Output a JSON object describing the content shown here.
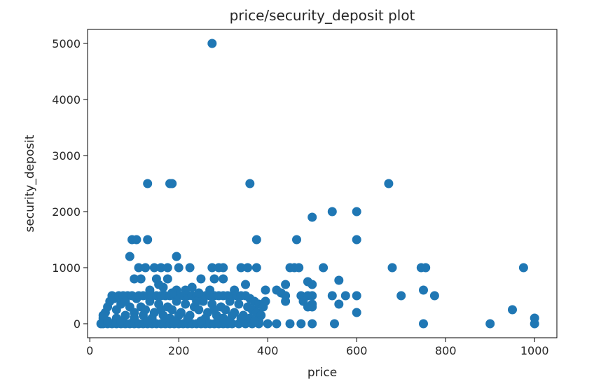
{
  "chart_data": {
    "type": "scatter",
    "title": "price/security_deposit plot",
    "xlabel": "price",
    "ylabel": "security_deposit",
    "xlim": [
      -5,
      1050
    ],
    "ylim": [
      -250,
      5250
    ],
    "xticks": [
      0,
      200,
      400,
      600,
      800,
      1000
    ],
    "yticks": [
      0,
      1000,
      2000,
      3000,
      4000,
      5000
    ],
    "grid": false,
    "legend": "none",
    "marker_color": "#1f77b4",
    "series": [
      {
        "points": [
          [
            275,
            5000
          ],
          [
            130,
            2500
          ],
          [
            180,
            2500
          ],
          [
            185,
            2500
          ],
          [
            360,
            2500
          ],
          [
            672,
            2500
          ],
          [
            545,
            2000
          ],
          [
            600,
            2000
          ],
          [
            500,
            1900
          ],
          [
            95,
            1500
          ],
          [
            105,
            1500
          ],
          [
            130,
            1500
          ],
          [
            375,
            1500
          ],
          [
            465,
            1500
          ],
          [
            600,
            1500
          ],
          [
            90,
            1200
          ],
          [
            195,
            1200
          ],
          [
            110,
            1000
          ],
          [
            125,
            1000
          ],
          [
            145,
            1000
          ],
          [
            160,
            1000
          ],
          [
            175,
            1000
          ],
          [
            200,
            1000
          ],
          [
            225,
            1000
          ],
          [
            275,
            1000
          ],
          [
            290,
            1000
          ],
          [
            300,
            1000
          ],
          [
            340,
            1000
          ],
          [
            355,
            1000
          ],
          [
            375,
            1000
          ],
          [
            450,
            1000
          ],
          [
            460,
            1000
          ],
          [
            470,
            1000
          ],
          [
            525,
            1000
          ],
          [
            680,
            1000
          ],
          [
            745,
            1000
          ],
          [
            755,
            1000
          ],
          [
            975,
            1000
          ],
          [
            100,
            800
          ],
          [
            115,
            800
          ],
          [
            150,
            800
          ],
          [
            175,
            800
          ],
          [
            250,
            800
          ],
          [
            280,
            800
          ],
          [
            300,
            800
          ],
          [
            560,
            775
          ],
          [
            490,
            750
          ],
          [
            500,
            700
          ],
          [
            440,
            700
          ],
          [
            750,
            600
          ],
          [
            395,
            600
          ],
          [
            420,
            600
          ],
          [
            430,
            550
          ],
          [
            440,
            500
          ],
          [
            475,
            500
          ],
          [
            490,
            500
          ],
          [
            500,
            500
          ],
          [
            545,
            500
          ],
          [
            575,
            500
          ],
          [
            600,
            500
          ],
          [
            700,
            500
          ],
          [
            775,
            500
          ],
          [
            395,
            400
          ],
          [
            440,
            400
          ],
          [
            480,
            400
          ],
          [
            500,
            350
          ],
          [
            490,
            300
          ],
          [
            500,
            300
          ],
          [
            560,
            350
          ],
          [
            600,
            200
          ],
          [
            950,
            250
          ],
          [
            1000,
            100
          ],
          [
            25,
            0
          ],
          [
            30,
            0
          ],
          [
            40,
            0
          ],
          [
            50,
            0
          ],
          [
            60,
            0
          ],
          [
            70,
            0
          ],
          [
            80,
            0
          ],
          [
            90,
            0
          ],
          [
            100,
            0
          ],
          [
            110,
            0
          ],
          [
            120,
            0
          ],
          [
            130,
            0
          ],
          [
            140,
            0
          ],
          [
            150,
            0
          ],
          [
            160,
            0
          ],
          [
            170,
            0
          ],
          [
            180,
            0
          ],
          [
            190,
            0
          ],
          [
            200,
            0
          ],
          [
            210,
            0
          ],
          [
            220,
            0
          ],
          [
            230,
            0
          ],
          [
            240,
            0
          ],
          [
            250,
            0
          ],
          [
            260,
            0
          ],
          [
            270,
            0
          ],
          [
            280,
            0
          ],
          [
            290,
            0
          ],
          [
            300,
            0
          ],
          [
            310,
            0
          ],
          [
            320,
            0
          ],
          [
            335,
            0
          ],
          [
            350,
            0
          ],
          [
            365,
            0
          ],
          [
            380,
            0
          ],
          [
            400,
            0
          ],
          [
            420,
            0
          ],
          [
            450,
            0
          ],
          [
            475,
            0
          ],
          [
            500,
            0
          ],
          [
            550,
            0
          ],
          [
            750,
            0
          ],
          [
            900,
            0
          ],
          [
            1000,
            0
          ],
          [
            30,
            100
          ],
          [
            35,
            200
          ],
          [
            40,
            300
          ],
          [
            30,
            150
          ],
          [
            45,
            400
          ],
          [
            50,
            500
          ],
          [
            55,
            450
          ],
          [
            60,
            250
          ],
          [
            65,
            500
          ],
          [
            70,
            350
          ],
          [
            75,
            500
          ],
          [
            80,
            150
          ],
          [
            85,
            500
          ],
          [
            90,
            300
          ],
          [
            95,
            500
          ],
          [
            100,
            200
          ],
          [
            105,
            450
          ],
          [
            110,
            500
          ],
          [
            115,
            300
          ],
          [
            120,
            500
          ],
          [
            125,
            250
          ],
          [
            130,
            500
          ],
          [
            135,
            400
          ],
          [
            140,
            500
          ],
          [
            145,
            200
          ],
          [
            150,
            500
          ],
          [
            155,
            350
          ],
          [
            160,
            500
          ],
          [
            165,
            150
          ],
          [
            170,
            500
          ],
          [
            175,
            300
          ],
          [
            180,
            500
          ],
          [
            185,
            250
          ],
          [
            190,
            500
          ],
          [
            195,
            400
          ],
          [
            200,
            500
          ],
          [
            205,
            200
          ],
          [
            210,
            500
          ],
          [
            215,
            350
          ],
          [
            220,
            500
          ],
          [
            225,
            150
          ],
          [
            230,
            500
          ],
          [
            235,
            300
          ],
          [
            240,
            500
          ],
          [
            245,
            250
          ],
          [
            250,
            500
          ],
          [
            255,
            400
          ],
          [
            260,
            500
          ],
          [
            265,
            200
          ],
          [
            270,
            500
          ],
          [
            275,
            350
          ],
          [
            280,
            500
          ],
          [
            285,
            150
          ],
          [
            290,
            500
          ],
          [
            295,
            300
          ],
          [
            300,
            500
          ],
          [
            305,
            250
          ],
          [
            310,
            500
          ],
          [
            315,
            400
          ],
          [
            320,
            500
          ],
          [
            325,
            200
          ],
          [
            330,
            500
          ],
          [
            335,
            350
          ],
          [
            340,
            500
          ],
          [
            345,
            150
          ],
          [
            350,
            500
          ],
          [
            355,
            300
          ],
          [
            360,
            450
          ],
          [
            365,
            250
          ],
          [
            370,
            400
          ],
          [
            375,
            200
          ],
          [
            380,
            350
          ],
          [
            385,
            150
          ],
          [
            390,
            300
          ],
          [
            60,
            100
          ],
          [
            80,
            400
          ],
          [
            100,
            100
          ],
          [
            120,
            150
          ],
          [
            140,
            100
          ],
          [
            160,
            250
          ],
          [
            180,
            100
          ],
          [
            200,
            150
          ],
          [
            220,
            100
          ],
          [
            240,
            400
          ],
          [
            260,
            100
          ],
          [
            280,
            250
          ],
          [
            300,
            100
          ],
          [
            320,
            150
          ],
          [
            340,
            100
          ],
          [
            360,
            100
          ],
          [
            380,
            50
          ],
          [
            40,
            50
          ],
          [
            70,
            50
          ],
          [
            130,
            50
          ],
          [
            190,
            50
          ],
          [
            250,
            50
          ],
          [
            310,
            50
          ],
          [
            370,
            50
          ],
          [
            135,
            600
          ],
          [
            165,
            650
          ],
          [
            195,
            600
          ],
          [
            230,
            650
          ],
          [
            270,
            600
          ],
          [
            155,
            700
          ],
          [
            185,
            550
          ],
          [
            215,
            600
          ],
          [
            245,
            550
          ],
          [
            325,
            600
          ],
          [
            350,
            700
          ]
        ]
      }
    ]
  }
}
